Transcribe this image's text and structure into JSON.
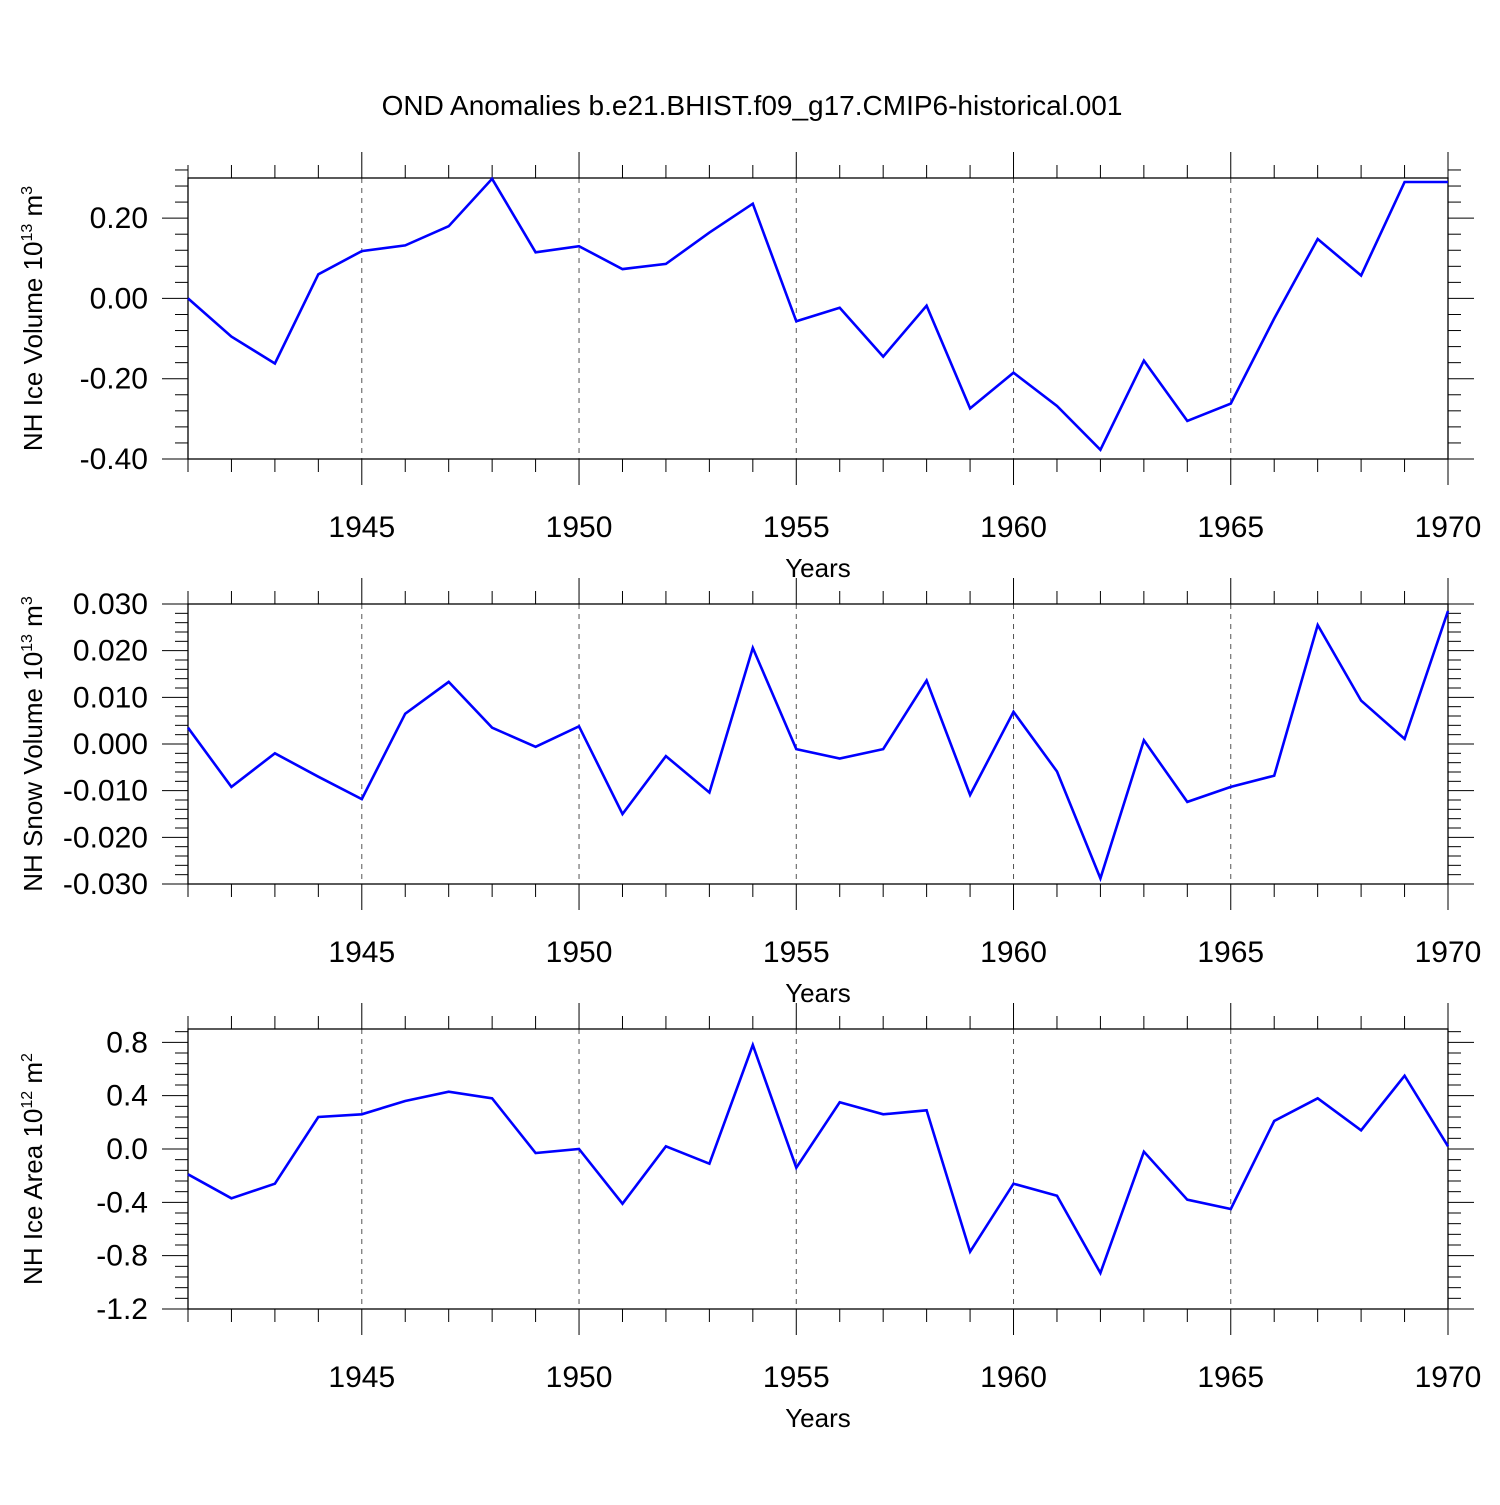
{
  "title": "OND Anomalies b.e21.BHIST.f09_g17.CMIP6-historical.001",
  "chart_data": [
    {
      "type": "line",
      "ylabel": "NH Ice Volume 10",
      "ylabel_sup": "13",
      "ylabel_unit": "m",
      "ylabel_unit_sup": "3",
      "xlabel": "Years",
      "xlim": [
        1941,
        1970
      ],
      "ylim": [
        -0.4,
        0.3
      ],
      "yticks": [
        -0.4,
        -0.2,
        0.0,
        0.2
      ],
      "ytick_labels": [
        "-0.40",
        "-0.20",
        "0.00",
        "0.20"
      ],
      "xticks": [
        1945,
        1950,
        1955,
        1960,
        1965,
        1970
      ],
      "xtick_labels": [
        "1945",
        "1950",
        "1955",
        "1960",
        "1965",
        "1970"
      ],
      "series": [
        {
          "color": "#0000ff",
          "x": [
            1941,
            1942,
            1943,
            1944,
            1945,
            1946,
            1947,
            1948,
            1949,
            1950,
            1951,
            1952,
            1953,
            1954,
            1955,
            1956,
            1957,
            1958,
            1959,
            1960,
            1961,
            1962,
            1963,
            1964,
            1965,
            1966,
            1967,
            1968,
            1969,
            1970
          ],
          "values": [
            0.0,
            -0.095,
            -0.162,
            0.06,
            0.118,
            0.132,
            0.18,
            0.298,
            0.115,
            0.13,
            0.073,
            0.086,
            0.164,
            0.236,
            -0.057,
            -0.023,
            -0.145,
            -0.018,
            -0.274,
            -0.185,
            -0.268,
            -0.377,
            -0.155,
            -0.305,
            -0.262,
            -0.05,
            0.148,
            0.057,
            0.29,
            0.29
          ]
        }
      ]
    },
    {
      "type": "line",
      "ylabel": "NH Snow Volume 10",
      "ylabel_sup": "13",
      "ylabel_unit": "m",
      "ylabel_unit_sup": "3",
      "xlabel": "Years",
      "xlim": [
        1941,
        1970
      ],
      "ylim": [
        -0.03,
        0.03
      ],
      "yticks": [
        -0.03,
        -0.02,
        -0.01,
        0.0,
        0.01,
        0.02,
        0.03
      ],
      "ytick_labels": [
        "-0.030",
        "-0.020",
        "-0.010",
        "0.000",
        "0.010",
        "0.020",
        "0.030"
      ],
      "xticks": [
        1945,
        1950,
        1955,
        1960,
        1965,
        1970
      ],
      "xtick_labels": [
        "1945",
        "1950",
        "1955",
        "1960",
        "1965",
        "1970"
      ],
      "series": [
        {
          "color": "#0000ff",
          "x": [
            1941,
            1942,
            1943,
            1944,
            1945,
            1946,
            1947,
            1948,
            1949,
            1950,
            1951,
            1952,
            1953,
            1954,
            1955,
            1956,
            1957,
            1958,
            1959,
            1960,
            1961,
            1962,
            1963,
            1964,
            1965,
            1966,
            1967,
            1968,
            1969,
            1970
          ],
          "values": [
            0.0035,
            -0.0092,
            -0.002,
            -0.007,
            -0.0118,
            0.0065,
            0.0133,
            0.0035,
            -0.0006,
            0.0038,
            -0.015,
            -0.0026,
            -0.0104,
            0.0206,
            -0.0011,
            -0.0031,
            -0.0011,
            0.0136,
            -0.0109,
            0.0069,
            -0.0059,
            -0.0288,
            0.0008,
            -0.0124,
            -0.0092,
            -0.0068,
            0.0255,
            0.0093,
            0.0011,
            0.0285
          ]
        }
      ]
    },
    {
      "type": "line",
      "ylabel": "NH Ice Area 10",
      "ylabel_sup": "12",
      "ylabel_unit": "m",
      "ylabel_unit_sup": "2",
      "xlabel": "Years",
      "xlim": [
        1941,
        1970
      ],
      "ylim": [
        -1.2,
        0.9
      ],
      "yticks": [
        -1.2,
        -0.8,
        -0.4,
        0.0,
        0.4,
        0.8
      ],
      "ytick_labels": [
        "-1.2",
        "-0.8",
        "-0.4",
        "0.0",
        "0.4",
        "0.8"
      ],
      "xticks": [
        1945,
        1950,
        1955,
        1960,
        1965,
        1970
      ],
      "xtick_labels": [
        "1945",
        "1950",
        "1955",
        "1960",
        "1965",
        "1970"
      ],
      "series": [
        {
          "color": "#0000ff",
          "x": [
            1941,
            1942,
            1943,
            1944,
            1945,
            1946,
            1947,
            1948,
            1949,
            1950,
            1951,
            1952,
            1953,
            1954,
            1955,
            1956,
            1957,
            1958,
            1959,
            1960,
            1961,
            1962,
            1963,
            1964,
            1965,
            1966,
            1967,
            1968,
            1969,
            1970
          ],
          "values": [
            -0.19,
            -0.37,
            -0.26,
            0.24,
            0.26,
            0.36,
            0.43,
            0.38,
            -0.03,
            0.0,
            -0.41,
            0.02,
            -0.11,
            0.78,
            -0.14,
            0.35,
            0.26,
            0.29,
            -0.77,
            -0.26,
            -0.35,
            -0.93,
            -0.02,
            -0.38,
            -0.45,
            0.21,
            0.38,
            0.14,
            0.55,
            0.02
          ]
        }
      ]
    }
  ]
}
